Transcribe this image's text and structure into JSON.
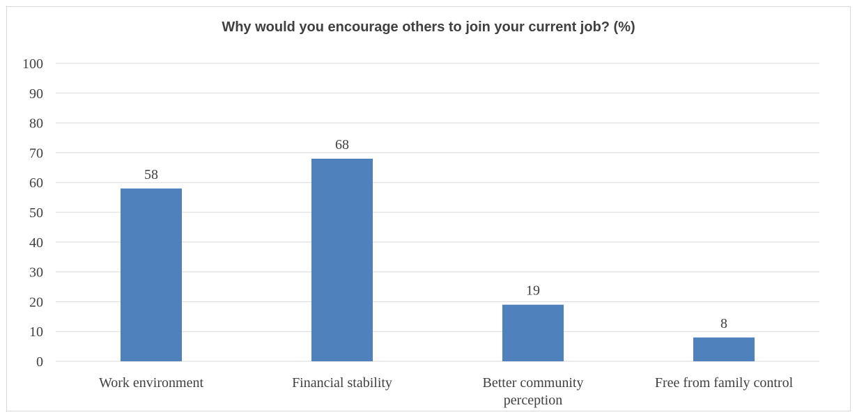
{
  "chart_data": {
    "type": "bar",
    "title": "Why would you encourage others to join your current job? (%)",
    "categories": [
      [
        "Work environment"
      ],
      [
        "Financial stability"
      ],
      [
        "Better community",
        "perception"
      ],
      [
        "Free from family control"
      ]
    ],
    "values": [
      58,
      68,
      19,
      8
    ],
    "ylim": [
      0,
      100
    ],
    "yticks": [
      "0",
      "10",
      "20",
      "30",
      "40",
      "50",
      "60",
      "70",
      "80",
      "90",
      "100"
    ],
    "bar_color": "#4f81bd",
    "grid": true,
    "legend": "none"
  }
}
